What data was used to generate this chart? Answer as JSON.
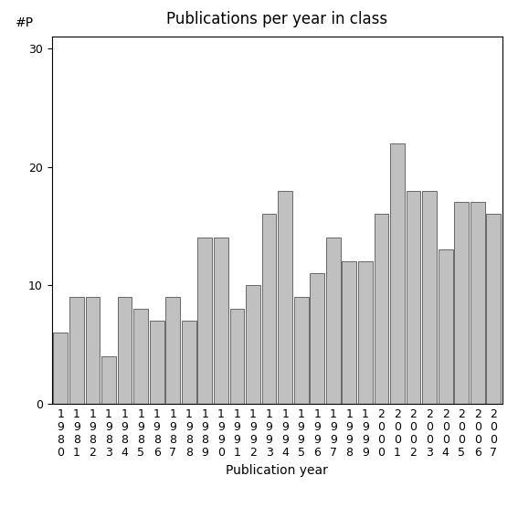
{
  "years": [
    1980,
    1981,
    1982,
    1983,
    1984,
    1985,
    1986,
    1987,
    1988,
    1989,
    1990,
    1991,
    1992,
    1993,
    1994,
    1995,
    1996,
    1997,
    1998,
    1999,
    2000,
    2001,
    2002,
    2003,
    2004,
    2005,
    2006,
    2007
  ],
  "values": [
    6,
    9,
    9,
    4,
    9,
    8,
    7,
    9,
    7,
    14,
    14,
    8,
    10,
    16,
    18,
    9,
    11,
    14,
    12,
    12,
    16,
    22,
    18,
    18,
    13,
    17,
    17,
    16
  ],
  "bar_color": "#c0c0c0",
  "bar_edgecolor": "#555555",
  "title": "Publications per year in class",
  "xlabel": "Publication year",
  "ylabel": "#P",
  "ylim": [
    0,
    31
  ],
  "yticks": [
    0,
    10,
    20,
    30
  ],
  "title_fontsize": 12,
  "label_fontsize": 10,
  "tick_fontsize": 9,
  "background_color": "#ffffff"
}
